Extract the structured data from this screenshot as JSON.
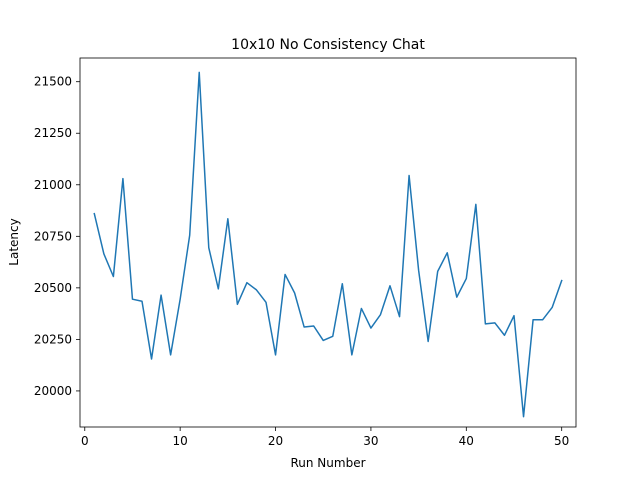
{
  "chart_data": {
    "type": "line",
    "title": "10x10 No Consistency Chat",
    "xlabel": "Run Number",
    "ylabel": "Latency",
    "xlim": [
      -0.5,
      51.5
    ],
    "ylim": [
      19825,
      21615
    ],
    "xticks": [
      0,
      10,
      20,
      30,
      40,
      50
    ],
    "yticks": [
      20000,
      20250,
      20500,
      20750,
      21000,
      21250,
      21500
    ],
    "grid": false,
    "series": [
      {
        "color": "#1f77b4",
        "x": [
          1,
          2,
          3,
          4,
          5,
          6,
          7,
          8,
          9,
          10,
          11,
          12,
          13,
          14,
          15,
          16,
          17,
          18,
          19,
          20,
          21,
          22,
          23,
          24,
          25,
          26,
          27,
          28,
          29,
          30,
          31,
          32,
          33,
          34,
          35,
          36,
          37,
          38,
          39,
          40,
          41,
          42,
          43,
          44,
          45,
          46,
          47,
          48,
          49,
          50
        ],
        "y": [
          20860,
          20665,
          20555,
          21030,
          20445,
          20435,
          20155,
          20465,
          20175,
          20445,
          20755,
          21545,
          20695,
          20495,
          20835,
          20420,
          20525,
          20490,
          20430,
          20175,
          20565,
          20475,
          20310,
          20315,
          20245,
          20265,
          20520,
          20175,
          20400,
          20305,
          20370,
          20510,
          20360,
          21045,
          20585,
          20240,
          20580,
          20670,
          20455,
          20545,
          20905,
          20325,
          20330,
          20270,
          20365,
          19875,
          20345,
          20345,
          20405,
          20535
        ]
      }
    ]
  }
}
